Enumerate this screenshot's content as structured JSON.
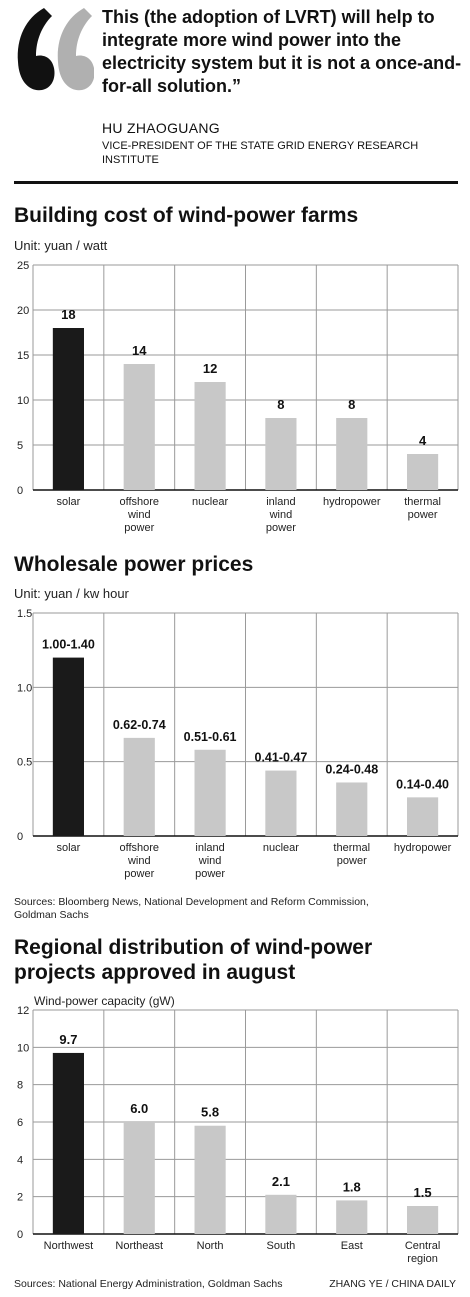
{
  "quote": {
    "text": "This (the adoption of LVRT) will help to integrate more wind power into the electricity system but it is not a once-and-for-all solution.”",
    "speaker": "HU ZHAOGUANG",
    "speaker_title": "VICE-PRESIDENT OF THE STATE GRID ENERGY RESEARCH INSTITUTE",
    "colors": {
      "left_mark": "#111111",
      "right_mark": "#b0b0b0"
    }
  },
  "colors": {
    "highlight_bar": "#1a1a1a",
    "bar": "#c8c8c8",
    "grid": "#9a9a9a",
    "axis": "#111111"
  },
  "chart_data": [
    {
      "type": "bar",
      "title": "Building cost of wind-power farms",
      "ylabel": "Unit: yuan / watt",
      "xlabel": "",
      "ylim": [
        0,
        25
      ],
      "yticks": [
        "0",
        "5",
        "10",
        "15",
        "20",
        "25"
      ],
      "categories": [
        [
          "solar"
        ],
        [
          "offshore",
          "wind",
          "power"
        ],
        [
          "nuclear"
        ],
        [
          "inland",
          "wind",
          "power"
        ],
        [
          "hydropower"
        ],
        [
          "thermal",
          "power"
        ]
      ],
      "values": [
        18,
        14,
        12,
        8,
        8,
        4
      ],
      "labels": [
        "18",
        "14",
        "12",
        "8",
        "8",
        "4"
      ],
      "highlight_index": 0
    },
    {
      "type": "bar",
      "title": "Wholesale power prices",
      "ylabel": "Unit: yuan / kw hour",
      "xlabel": "",
      "ylim": [
        0,
        1.5
      ],
      "yticks": [
        "0",
        "0.5",
        "1.0",
        "1.5"
      ],
      "categories": [
        [
          "solar"
        ],
        [
          "offshore",
          "wind",
          "power"
        ],
        [
          "inland",
          "wind",
          "power"
        ],
        [
          "nuclear"
        ],
        [
          "thermal",
          "power"
        ],
        [
          "hydropower"
        ]
      ],
      "values": [
        1.2,
        0.66,
        0.58,
        0.44,
        0.36,
        0.26
      ],
      "labels": [
        "1.00-1.40",
        "0.62-0.74",
        "0.51-0.61",
        "0.41-0.47",
        "0.24-0.48",
        "0.14-0.40"
      ],
      "highlight_index": 0
    },
    {
      "type": "bar",
      "title": "Regional distribution of wind-power\nprojects approved in august",
      "ylabel": "Wind-power capacity (gW)",
      "xlabel": "",
      "ylim": [
        0,
        12
      ],
      "yticks": [
        "0",
        "2",
        "4",
        "6",
        "8",
        "10",
        "12"
      ],
      "categories": [
        [
          "Northwest"
        ],
        [
          "Northeast"
        ],
        [
          "North"
        ],
        [
          "South"
        ],
        [
          "East"
        ],
        [
          "Central",
          "region"
        ]
      ],
      "values": [
        9.7,
        6.0,
        5.8,
        2.1,
        1.8,
        1.5
      ],
      "labels": [
        "9.7",
        "6.0",
        "5.8",
        "2.1",
        "1.8",
        "1.5"
      ],
      "highlight_index": 0
    }
  ],
  "sources": {
    "prices": "Sources: Bloomberg News, National Development and Reform Commission,\nGoldman Sachs",
    "regional": "Sources: National Energy Administration, Goldman Sachs"
  },
  "credit": "ZHANG YE / CHINA DAILY"
}
